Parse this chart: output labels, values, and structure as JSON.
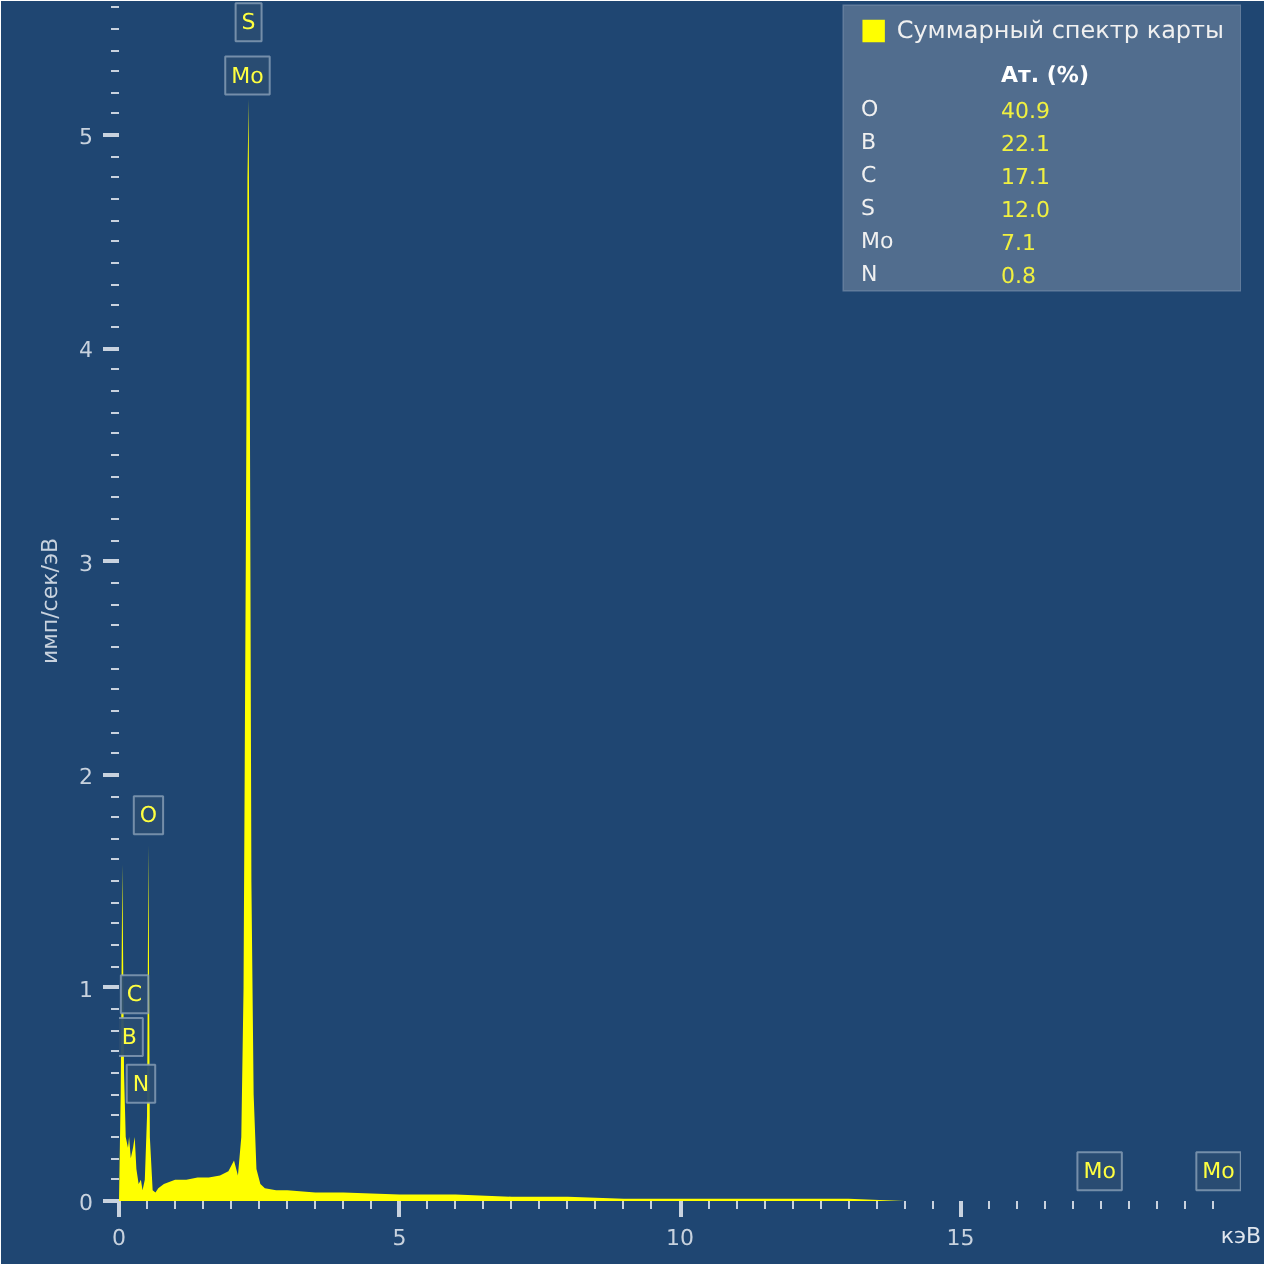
{
  "chart_data": {
    "type": "area",
    "xlabel": "кэВ",
    "ylabel": "имп/сек/эВ",
    "xlim": [
      0,
      20
    ],
    "ylim": [
      0,
      5.63
    ],
    "xticks": [
      0,
      5,
      10,
      15
    ],
    "yticks": [
      0,
      1,
      2,
      3,
      4,
      5
    ],
    "grid": false,
    "legend": "top right",
    "series": [
      {
        "name": "Суммарный спектр карты",
        "color": "#ffff00",
        "x": [
          0,
          0.03,
          0.06,
          0.09,
          0.12,
          0.16,
          0.18,
          0.21,
          0.25,
          0.28,
          0.31,
          0.35,
          0.39,
          0.42,
          0.46,
          0.5,
          0.525,
          0.55,
          0.6,
          0.65,
          0.7,
          0.8,
          1.0,
          1.2,
          1.4,
          1.6,
          1.8,
          1.95,
          2.05,
          2.12,
          2.18,
          2.22,
          2.26,
          2.29,
          2.31,
          2.33,
          2.36,
          2.4,
          2.45,
          2.52,
          2.6,
          2.8,
          3.0,
          3.5,
          4,
          5,
          6,
          7,
          8,
          9,
          10,
          11,
          12,
          13,
          14,
          15,
          16,
          17,
          18,
          19,
          20
        ],
        "values": [
          0,
          0.5,
          1.58,
          0.6,
          0.3,
          0.25,
          0.3,
          0.2,
          0.25,
          0.3,
          0.15,
          0.08,
          0.1,
          0.05,
          0.1,
          0.4,
          1.67,
          0.3,
          0.05,
          0.04,
          0.06,
          0.08,
          0.1,
          0.1,
          0.11,
          0.11,
          0.12,
          0.14,
          0.19,
          0.12,
          0.3,
          1.0,
          3.0,
          4.8,
          5.17,
          4.0,
          1.5,
          0.5,
          0.15,
          0.08,
          0.06,
          0.05,
          0.05,
          0.04,
          0.04,
          0.03,
          0.03,
          0.02,
          0.02,
          0.01,
          0.01,
          0.01,
          0.01,
          0.01,
          0,
          0,
          0,
          0,
          0,
          0,
          0
        ]
      }
    ],
    "annotations": [
      {
        "text": "S",
        "x": 2.31,
        "y": 5.53
      },
      {
        "text": "Mo",
        "x": 2.29,
        "y": 5.28
      },
      {
        "text": "O",
        "x": 0.525,
        "y": 1.81
      },
      {
        "text": "C",
        "x": 0.277,
        "y": 0.97
      },
      {
        "text": "B",
        "x": 0.183,
        "y": 0.77
      },
      {
        "text": "N",
        "x": 0.392,
        "y": 0.55
      },
      {
        "text": "Mo",
        "x": 17.48,
        "y": 0.14
      },
      {
        "text": "Mo",
        "x": 19.6,
        "y": 0.14
      },
      "Ат. (%)",
      "O",
      "40.9",
      "B",
      "22.1",
      "C",
      "17.1",
      "S",
      "12.0",
      "Mo",
      "7.1",
      "N",
      "0.8"
    ]
  }
}
